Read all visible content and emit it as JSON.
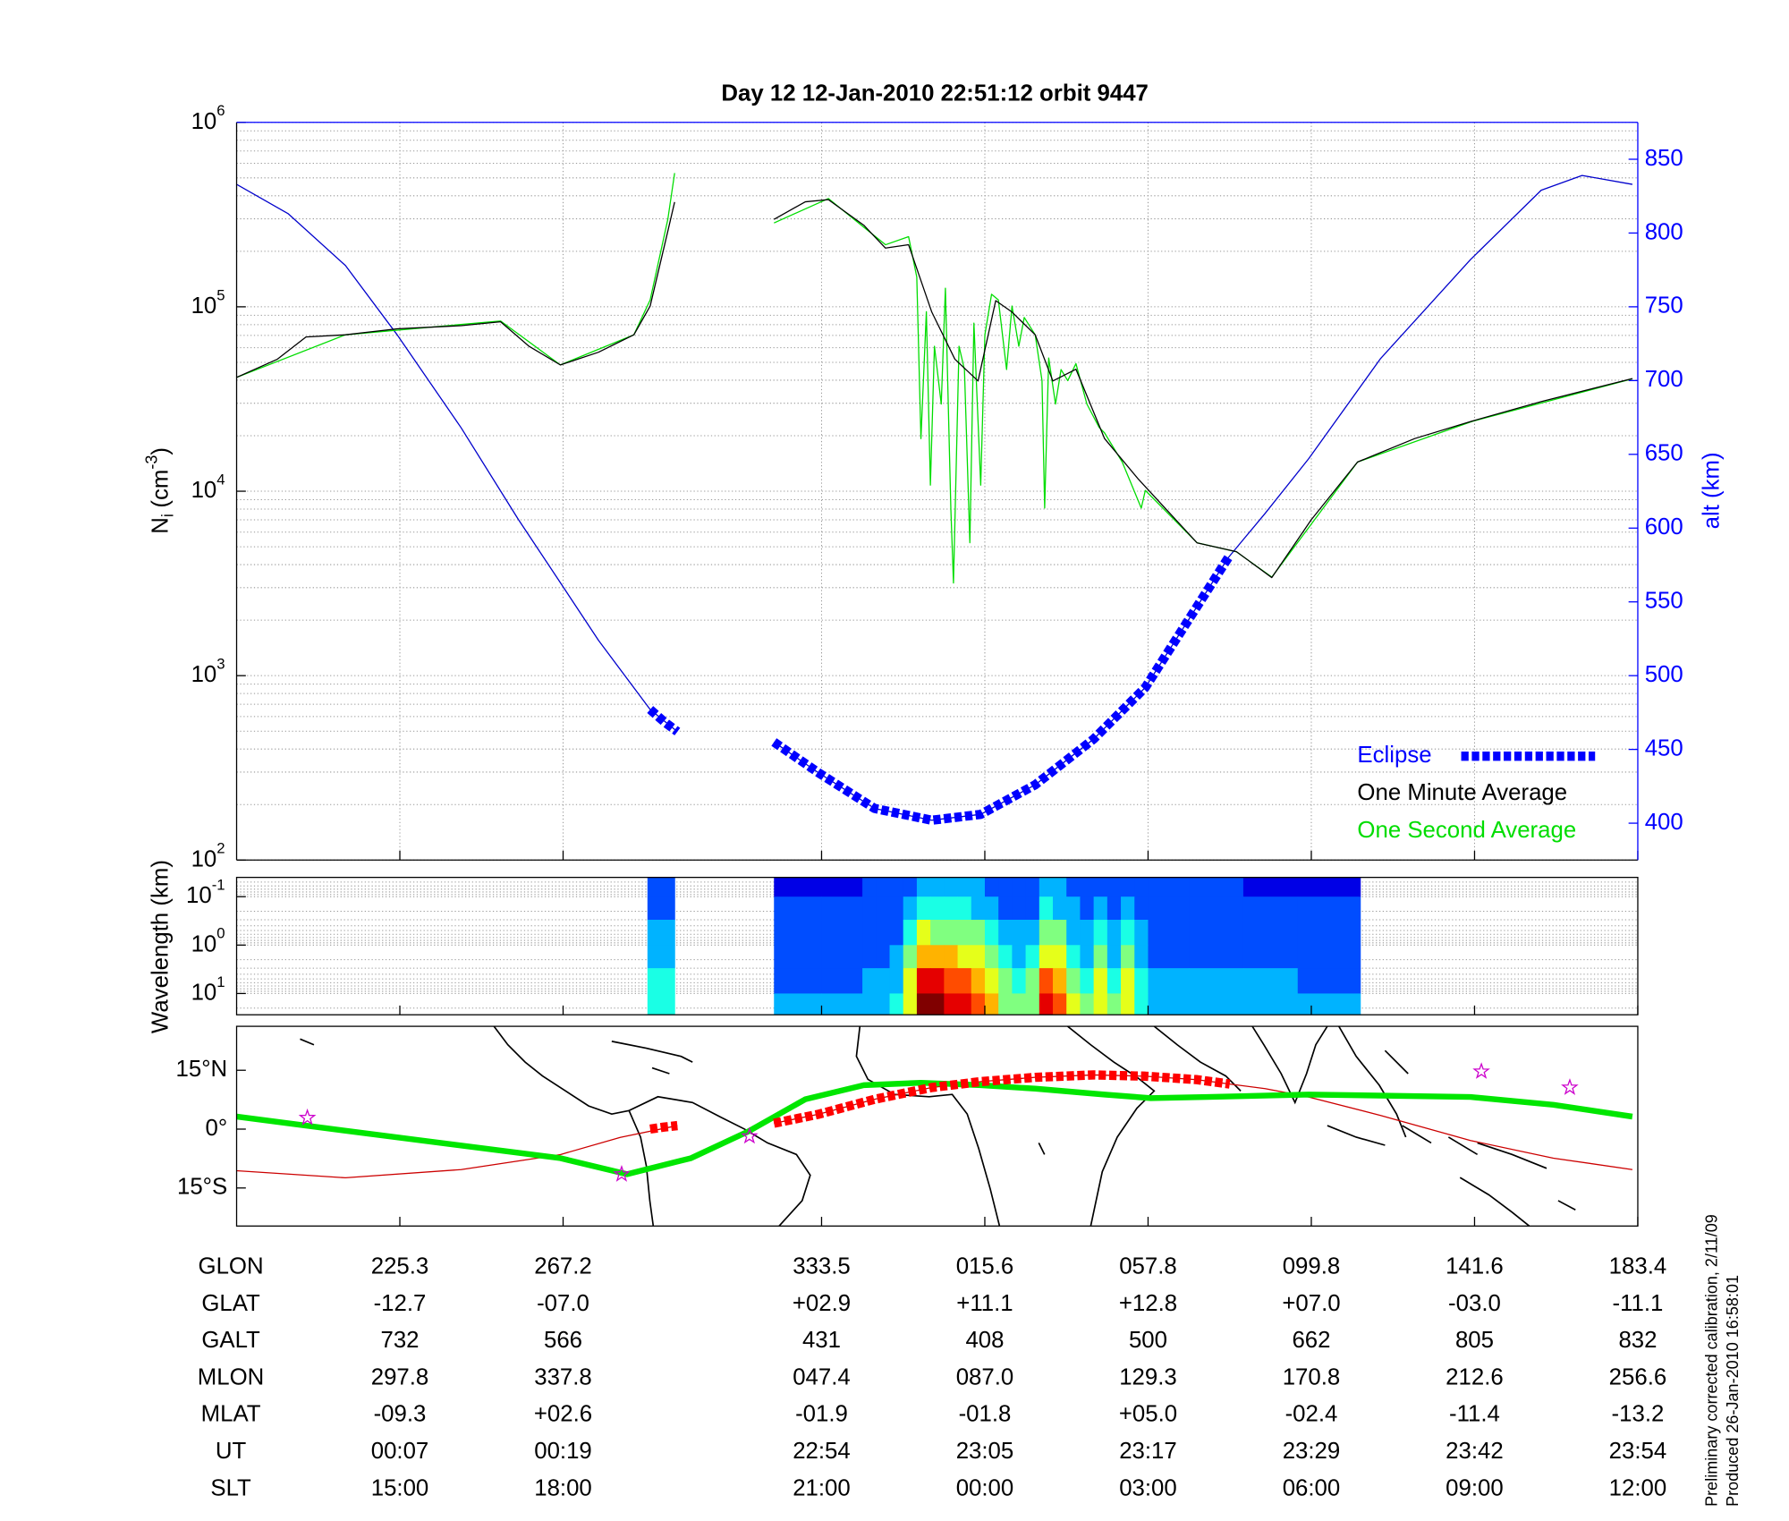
{
  "chart_data": [
    {
      "type": "line",
      "title": "Day 12  12-Jan-2010 22:51:12   orbit 9447",
      "ylabel": [
        "N",
        "i",
        "(cm",
        "-3",
        ")"
      ],
      "y2label": "alt (km)",
      "y2color": "#0000ff",
      "xlim": [
        0,
        103
      ],
      "xticks": [
        12,
        24,
        43,
        55,
        67,
        79,
        91,
        103
      ],
      "yscale": "log",
      "ylim": [
        100,
        1000000
      ],
      "yticks": [
        {
          "value": 100,
          "label": "10",
          "exponent": "2"
        },
        {
          "value": 1000,
          "label": "10",
          "exponent": "3"
        },
        {
          "value": 10000,
          "label": "10",
          "exponent": "4"
        },
        {
          "value": 100000,
          "label": "10",
          "exponent": "5"
        },
        {
          "value": 1000000,
          "label": "10",
          "exponent": "6"
        }
      ],
      "y2lim": [
        375,
        875
      ],
      "y2ticks": [
        400,
        450,
        500,
        550,
        600,
        650,
        700,
        750,
        800,
        850
      ],
      "grid": true,
      "legend": "lower right",
      "series": [
        {
          "axis": "y2",
          "color": "#0000cc",
          "linewidth": 1,
          "x": [
            0,
            3.8,
            8.0,
            11.8,
            16.5,
            20.7,
            23.8,
            26.6,
            30.4,
            32.4,
            35.9,
            39.5,
            42.8,
            46.9,
            51.1,
            54.7,
            58.7,
            63.0,
            66.8,
            72.9,
            75.6,
            78.8,
            84.1,
            90.7,
            95.9,
            98.9,
            102.6
          ],
          "values": [
            833,
            813,
            778,
            731,
            668,
            606,
            563,
            524,
            477,
            462,
            null,
            455,
            434,
            410,
            402,
            406,
            426,
            457,
            492,
            580,
            610,
            647,
            715,
            782,
            829,
            839,
            833
          ]
        },
        {
          "name": "Eclipse",
          "axis": "y2",
          "color": "#0000ff",
          "linewidth": 8,
          "linestyle": "dashed",
          "x": [
            30.4,
            31.4,
            32.4,
            35.9,
            39.5,
            42.8,
            46.9,
            51.1,
            54.7,
            58.7,
            63.0,
            66.8,
            72.9
          ],
          "values": [
            477,
            469,
            462,
            null,
            455,
            434,
            410,
            402,
            406,
            426,
            457,
            492,
            580
          ]
        },
        {
          "name": "One Second Average",
          "color": "#00dd00",
          "linewidth": 1,
          "x": [
            0,
            8.0,
            19.4,
            23.8,
            29.2,
            30.4,
            31.7,
            32.2,
            35.9,
            39.5,
            43.5,
            47.7,
            49.4,
            50.0,
            50.3,
            50.7,
            51.0,
            51.3,
            51.8,
            52.1,
            52.5,
            52.7,
            53.1,
            53.5,
            53.9,
            54.2,
            54.7,
            55.0,
            55.5,
            56.0,
            56.6,
            57.0,
            57.5,
            57.9,
            58.7,
            59.2,
            59.4,
            59.7,
            60.2,
            60.6,
            61.1,
            61.7,
            62.5,
            63.4,
            63.8,
            65.1,
            66.5,
            66.8,
            70.6,
            73.5,
            76.1,
            82.4,
            90.8,
            102.6
          ],
          "values": [
            41400,
            70500,
            83800,
            48400,
            70500,
            109000,
            298000,
            531000,
            null,
            285000,
            386000,
            217000,
            240000,
            145000,
            19300,
            94000,
            10800,
            61100,
            29700,
            126000,
            8100,
            3180,
            61100,
            45700,
            5260,
            81500,
            10800,
            70500,
            117000,
            109000,
            45700,
            101000,
            61100,
            87500,
            70500,
            39800,
            8100,
            52800,
            29700,
            45700,
            39800,
            49200,
            29700,
            22200,
            20700,
            14400,
            8100,
            10100,
            5260,
            4690,
            3420,
            14400,
            23900,
            40700
          ]
        },
        {
          "name": "One Minute Average",
          "color": "#000000",
          "linewidth": 1,
          "x": [
            0,
            3.0,
            5.1,
            8.0,
            11.8,
            16.5,
            19.4,
            21.5,
            23.8,
            26.6,
            29.2,
            30.4,
            31.7,
            32.2,
            35.9,
            39.5,
            41.8,
            43.5,
            46.1,
            47.7,
            49.4,
            51.1,
            52.8,
            54.5,
            55.8,
            57.0,
            58.7,
            60.0,
            61.7,
            63.8,
            66.3,
            70.6,
            73.5,
            76.1,
            79.0,
            82.4,
            86.6,
            90.8,
            95.9,
            102.6
          ],
          "values": [
            41400,
            52000,
            68600,
            70500,
            76000,
            79000,
            83000,
            61000,
            48400,
            56700,
            70500,
            101000,
            257000,
            370000,
            null,
            298000,
            371000,
            381000,
            277000,
            208000,
            217000,
            93600,
            52000,
            39600,
            108000,
            93600,
            70500,
            39600,
            45900,
            19300,
            11600,
            5250,
            4700,
            3400,
            7000,
            14400,
            19300,
            24000,
            30600,
            40800
          ]
        }
      ],
      "legend_order": [
        1,
        3,
        2
      ]
    },
    {
      "type": "heatmap",
      "ylabel": "Wavelength (km)",
      "xlim": [
        0,
        103
      ],
      "yscale": "log",
      "yinverted": true,
      "ylim": [
        0.04,
        27.5
      ],
      "yticks": [
        {
          "value": 0.1,
          "label": "10",
          "exponent": "-1"
        },
        {
          "value": 1,
          "label": "10",
          "exponent": "0"
        },
        {
          "value": 10,
          "label": "10",
          "exponent": "1"
        }
      ],
      "colormap": "jet",
      "zlim": [
        0,
        1
      ],
      "xbins": [
        30.2,
        32.2,
        39.5,
        43,
        46,
        47,
        48,
        49,
        50,
        51,
        52,
        53,
        54,
        55,
        56,
        57,
        58,
        59,
        60,
        61,
        62,
        63,
        64,
        65,
        66,
        67,
        70,
        74,
        78,
        82.6
      ],
      "ybins": [
        0.04,
        0.1,
        0.3,
        1,
        3,
        10,
        27.5
      ],
      "z": [
        [
          0.2,
          null,
          0.1,
          0.1,
          0.2,
          0.2,
          0.2,
          0.2,
          0.3,
          0.3,
          0.3,
          0.3,
          0.3,
          0.2,
          0.2,
          0.2,
          0.2,
          0.3,
          0.3,
          0.2,
          0.2,
          0.2,
          0.2,
          0.2,
          0.2,
          0.2,
          0.2,
          0.1,
          0.1
        ],
        [
          0.2,
          null,
          0.2,
          0.2,
          0.2,
          0.2,
          0.2,
          0.3,
          0.4,
          0.4,
          0.4,
          0.4,
          0.3,
          0.3,
          0.2,
          0.2,
          0.2,
          0.4,
          0.3,
          0.3,
          0.2,
          0.3,
          0.2,
          0.3,
          0.2,
          0.2,
          0.2,
          0.2,
          0.2
        ],
        [
          0.3,
          null,
          0.2,
          0.2,
          0.2,
          0.2,
          0.2,
          0.4,
          0.6,
          0.5,
          0.5,
          0.5,
          0.5,
          0.4,
          0.3,
          0.3,
          0.3,
          0.5,
          0.5,
          0.3,
          0.3,
          0.4,
          0.3,
          0.4,
          0.3,
          0.2,
          0.2,
          0.2,
          0.2
        ],
        [
          0.3,
          null,
          0.2,
          0.2,
          0.2,
          0.2,
          0.3,
          0.5,
          0.7,
          0.7,
          0.7,
          0.6,
          0.6,
          0.5,
          0.4,
          0.3,
          0.4,
          0.6,
          0.6,
          0.4,
          0.3,
          0.5,
          0.3,
          0.5,
          0.3,
          0.2,
          0.2,
          0.2,
          0.2
        ],
        [
          0.4,
          null,
          0.2,
          0.2,
          0.3,
          0.3,
          0.3,
          0.6,
          0.9,
          0.9,
          0.8,
          0.8,
          0.7,
          0.6,
          0.5,
          0.4,
          0.5,
          0.8,
          0.7,
          0.5,
          0.4,
          0.6,
          0.4,
          0.6,
          0.4,
          0.3,
          0.3,
          0.3,
          0.2
        ],
        [
          0.4,
          null,
          0.3,
          0.3,
          0.3,
          0.3,
          0.4,
          0.6,
          1.0,
          1.0,
          0.9,
          0.9,
          0.8,
          0.7,
          0.5,
          0.5,
          0.5,
          0.9,
          0.8,
          0.6,
          0.5,
          0.6,
          0.5,
          0.6,
          0.4,
          0.3,
          0.3,
          0.3,
          0.3
        ]
      ]
    },
    {
      "type": "map",
      "xlim": [
        0,
        103
      ],
      "ylim": [
        -24.7,
        26.2
      ],
      "yticks": [
        {
          "value": 15,
          "label": "15°N"
        },
        {
          "value": 0,
          "label": "0°"
        },
        {
          "value": -15,
          "label": "15°S"
        }
      ],
      "series": [
        {
          "type": "line",
          "color": "#cc0000",
          "linewidth": 1,
          "x": [
            0,
            8.0,
            16.5,
            23.8,
            28.2,
            32.4,
            35.9,
            39.5,
            42.8,
            46.9,
            51.1,
            54.7,
            58.7,
            63.0,
            66.8,
            70.6,
            73.0,
            75.6,
            78.8,
            84.1,
            90.7,
            96.8,
            102.6
          ],
          "values": [
            -10.6,
            -12.4,
            -10.3,
            -6.5,
            -2.1,
            0.9,
            null,
            1.5,
            3.8,
            7.6,
            10.6,
            12.1,
            13.2,
            13.8,
            13.5,
            12.6,
            11.5,
            10.3,
            8.2,
            3.5,
            -2.9,
            -7.4,
            -10.3
          ]
        },
        {
          "type": "line",
          "color": "#00e600",
          "linewidth": 5,
          "x": [
            0,
            11.8,
            23.8,
            28.7,
            33.4,
            37.6,
            41.8,
            46.1,
            50.3,
            54.7,
            58.7,
            63.8,
            67.2,
            71.4,
            78.8,
            90.7,
            96.8,
            102.6
          ],
          "values": [
            3.2,
            -2.1,
            -7.4,
            -11.5,
            -7.4,
            -0.6,
            7.6,
            11.2,
            11.8,
            11.2,
            10.3,
            8.8,
            7.9,
            8.2,
            8.8,
            8.2,
            6.2,
            3.2
          ]
        },
        {
          "type": "line",
          "color": "#ff0000",
          "linewidth": 8,
          "linestyle": "dashed",
          "x": [
            30.4,
            31.4,
            32.4,
            35.9,
            39.5,
            42.8,
            46.9,
            51.1,
            54.7,
            58.7,
            63.0,
            66.8,
            70.6,
            73.0
          ],
          "values": [
            0.0,
            0.5,
            0.9,
            null,
            1.5,
            3.8,
            7.6,
            10.6,
            12.1,
            13.2,
            13.8,
            13.5,
            12.6,
            11.5
          ]
        },
        {
          "type": "scatter",
          "marker": "star",
          "color": "#cc00cc",
          "x": [
            5.2,
            28.3,
            37.7,
            91.5,
            98.0
          ],
          "values": [
            2.9,
            -11.5,
            -1.8,
            14.7,
            10.6
          ]
        }
      ]
    }
  ],
  "table": {
    "rows": [
      {
        "label": "GLON",
        "values": [
          "225.3",
          "267.2",
          "333.5",
          "015.6",
          "057.8",
          "099.8",
          "141.6",
          "183.4"
        ]
      },
      {
        "label": "GLAT",
        "values": [
          "-12.7",
          "-07.0",
          "+02.9",
          "+11.1",
          "+12.8",
          "+07.0",
          "-03.0",
          "-11.1"
        ]
      },
      {
        "label": "GALT",
        "values": [
          "732",
          "566",
          "431",
          "408",
          "500",
          "662",
          "805",
          "832"
        ]
      },
      {
        "label": "MLON",
        "values": [
          "297.8",
          "337.8",
          "047.4",
          "087.0",
          "129.3",
          "170.8",
          "212.6",
          "256.6"
        ]
      },
      {
        "label": "MLAT",
        "values": [
          "-09.3",
          "+02.6",
          "-01.9",
          "-01.8",
          "+05.0",
          "-02.4",
          "-11.4",
          "-13.2"
        ]
      },
      {
        "label": "UT",
        "values": [
          "00:07",
          "00:19",
          "22:54",
          "23:05",
          "23:17",
          "23:29",
          "23:42",
          "23:54"
        ]
      },
      {
        "label": "SLT",
        "values": [
          "15:00",
          "18:00",
          "21:00",
          "00:00",
          "03:00",
          "06:00",
          "09:00",
          "12:00"
        ]
      }
    ]
  },
  "notes": [
    "Preliminary corrected calibration, 2/11/09",
    "Produced 26-Jan-2010 16:58:01"
  ]
}
